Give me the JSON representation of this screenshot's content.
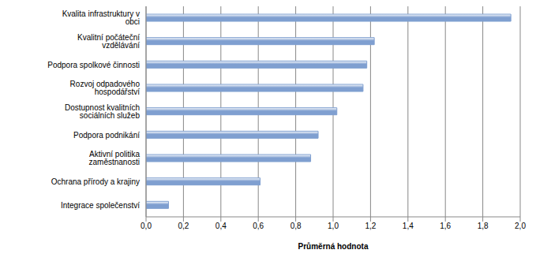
{
  "chart_data": {
    "type": "bar",
    "orientation": "horizontal",
    "x_label": "Průměrná hodnota",
    "categories": [
      "Kvalita infrastruktury v obci",
      "Kvalitní počáteční vzdělávání",
      "Podpora spolkové činnosti",
      "Rozvoj odpadového hospodářství",
      "Dostupnost kvalitních sociálních služeb",
      "Podpora podnikání",
      "Aktivní politika zaměstnanosti",
      "Ochrana přírody a krajiny",
      "Integrace společenství"
    ],
    "values": [
      1.95,
      1.22,
      1.18,
      1.16,
      1.02,
      0.92,
      0.88,
      0.61,
      0.12
    ],
    "color": "#7f9fd0",
    "xlim": [
      0,
      2
    ],
    "xticks": [
      {
        "value": 0,
        "label": "0,0"
      },
      {
        "value": 0.2,
        "label": "0,2"
      },
      {
        "value": 0.4,
        "label": "0,4"
      },
      {
        "value": 0.6,
        "label": "0,6"
      },
      {
        "value": 0.8,
        "label": "0,8"
      },
      {
        "value": 1.0,
        "label": "1,0"
      },
      {
        "value": 1.2,
        "label": "1,2"
      },
      {
        "value": 1.4,
        "label": "1,4"
      },
      {
        "value": 1.6,
        "label": "1,6"
      },
      {
        "value": 1.8,
        "label": "1,8"
      },
      {
        "value": 2.0,
        "label": "2,0"
      }
    ],
    "grid": true
  }
}
